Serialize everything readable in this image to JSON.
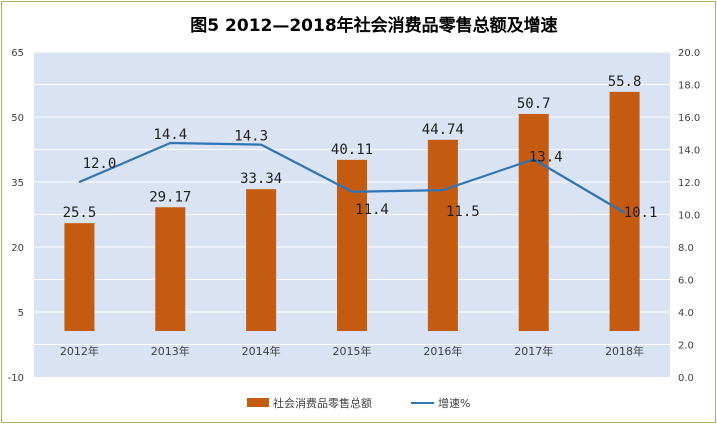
{
  "chart_data": {
    "type": "bar",
    "title": "图5   2012—2018年社会消费品零售总额及增速",
    "categories": [
      "2012年",
      "2013年",
      "2014年",
      "2015年",
      "2016年",
      "2017年",
      "2018年"
    ],
    "series": [
      {
        "name": "社会消费品零售总额",
        "type": "bar",
        "axis": "left",
        "values": [
          25.5,
          29.17,
          33.34,
          40.11,
          44.74,
          50.7,
          55.8
        ],
        "labels": [
          "25.5",
          "29.17",
          "33.34",
          "40.11",
          "44.74",
          "50.7",
          "55.8"
        ],
        "color": "#c55a11"
      },
      {
        "name": "增速%",
        "type": "line",
        "axis": "right",
        "values": [
          12.0,
          14.4,
          14.3,
          11.4,
          11.5,
          13.4,
          10.1
        ],
        "labels": [
          "12.0",
          "14.4",
          "14.3",
          "11.4",
          "11.5",
          "13.4",
          "10.1"
        ],
        "color": "#2e75b6"
      }
    ],
    "y_left": {
      "lim": [
        -10,
        65
      ],
      "ticks": [
        -10,
        5,
        20,
        35,
        50,
        65
      ],
      "tick_labels": [
        "-10",
        "5",
        "20",
        "35",
        "50",
        "65"
      ]
    },
    "y_right": {
      "lim": [
        0,
        20
      ],
      "ticks": [
        0,
        2,
        4,
        6,
        8,
        10,
        12,
        14,
        16,
        18,
        20
      ],
      "tick_labels": [
        "0.0",
        "2.0",
        "4.0",
        "6.0",
        "8.0",
        "10.0",
        "12.0",
        "14.0",
        "16.0",
        "18.0",
        "20.0"
      ]
    },
    "grid": true,
    "legend_position": "bottom",
    "colors": {
      "plot_background": "#dae3f3",
      "gridline": "#ffffff",
      "frame": "#9bbb59"
    }
  }
}
